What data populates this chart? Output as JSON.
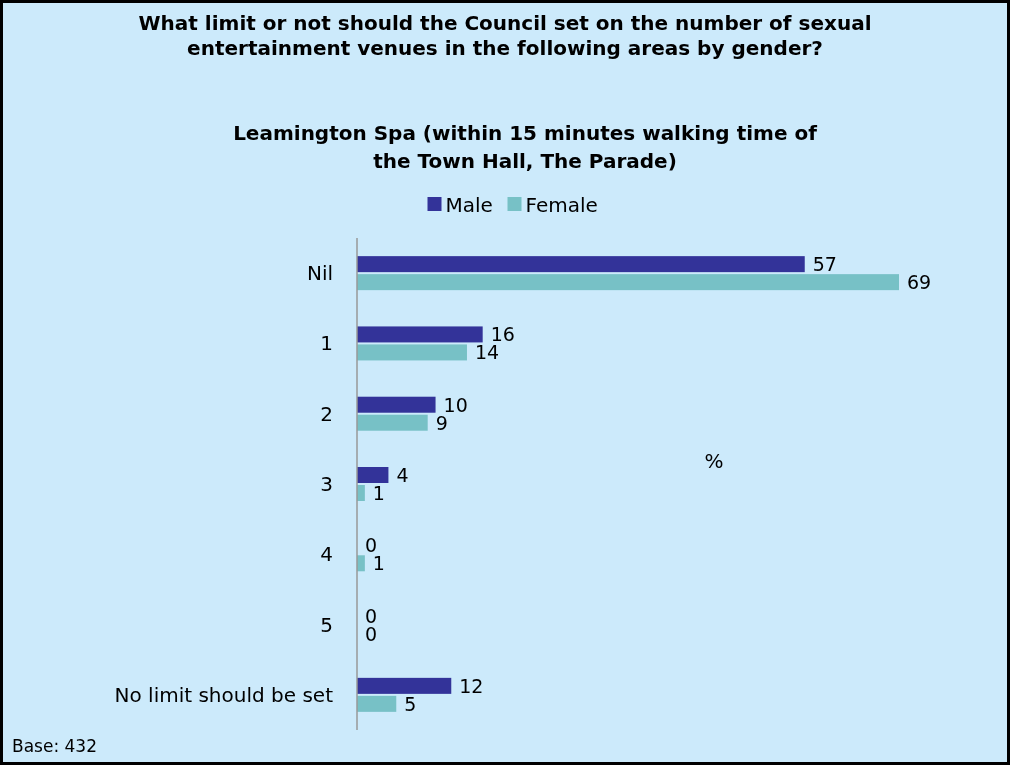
{
  "chart_data": {
    "type": "bar",
    "orientation": "horizontal",
    "title": "What limit or not should the Council set on the number of sexual entertainment venues in the following areas by gender?",
    "subtitle": "Leamington Spa (within 15 minutes walking time of the Town Hall, The Parade)",
    "xlabel": "%",
    "categories": [
      "Nil",
      "1",
      "2",
      "3",
      "4",
      "5",
      "No limit should be set"
    ],
    "series": [
      {
        "name": "Male",
        "color": "#333399",
        "values": [
          57,
          16,
          10,
          4,
          0,
          0,
          12
        ]
      },
      {
        "name": "Female",
        "color": "#77c1c6",
        "values": [
          69,
          14,
          9,
          1,
          1,
          0,
          5
        ]
      }
    ],
    "data_labels": true,
    "legend": "top",
    "annotations": [
      "Base: 432"
    ]
  }
}
